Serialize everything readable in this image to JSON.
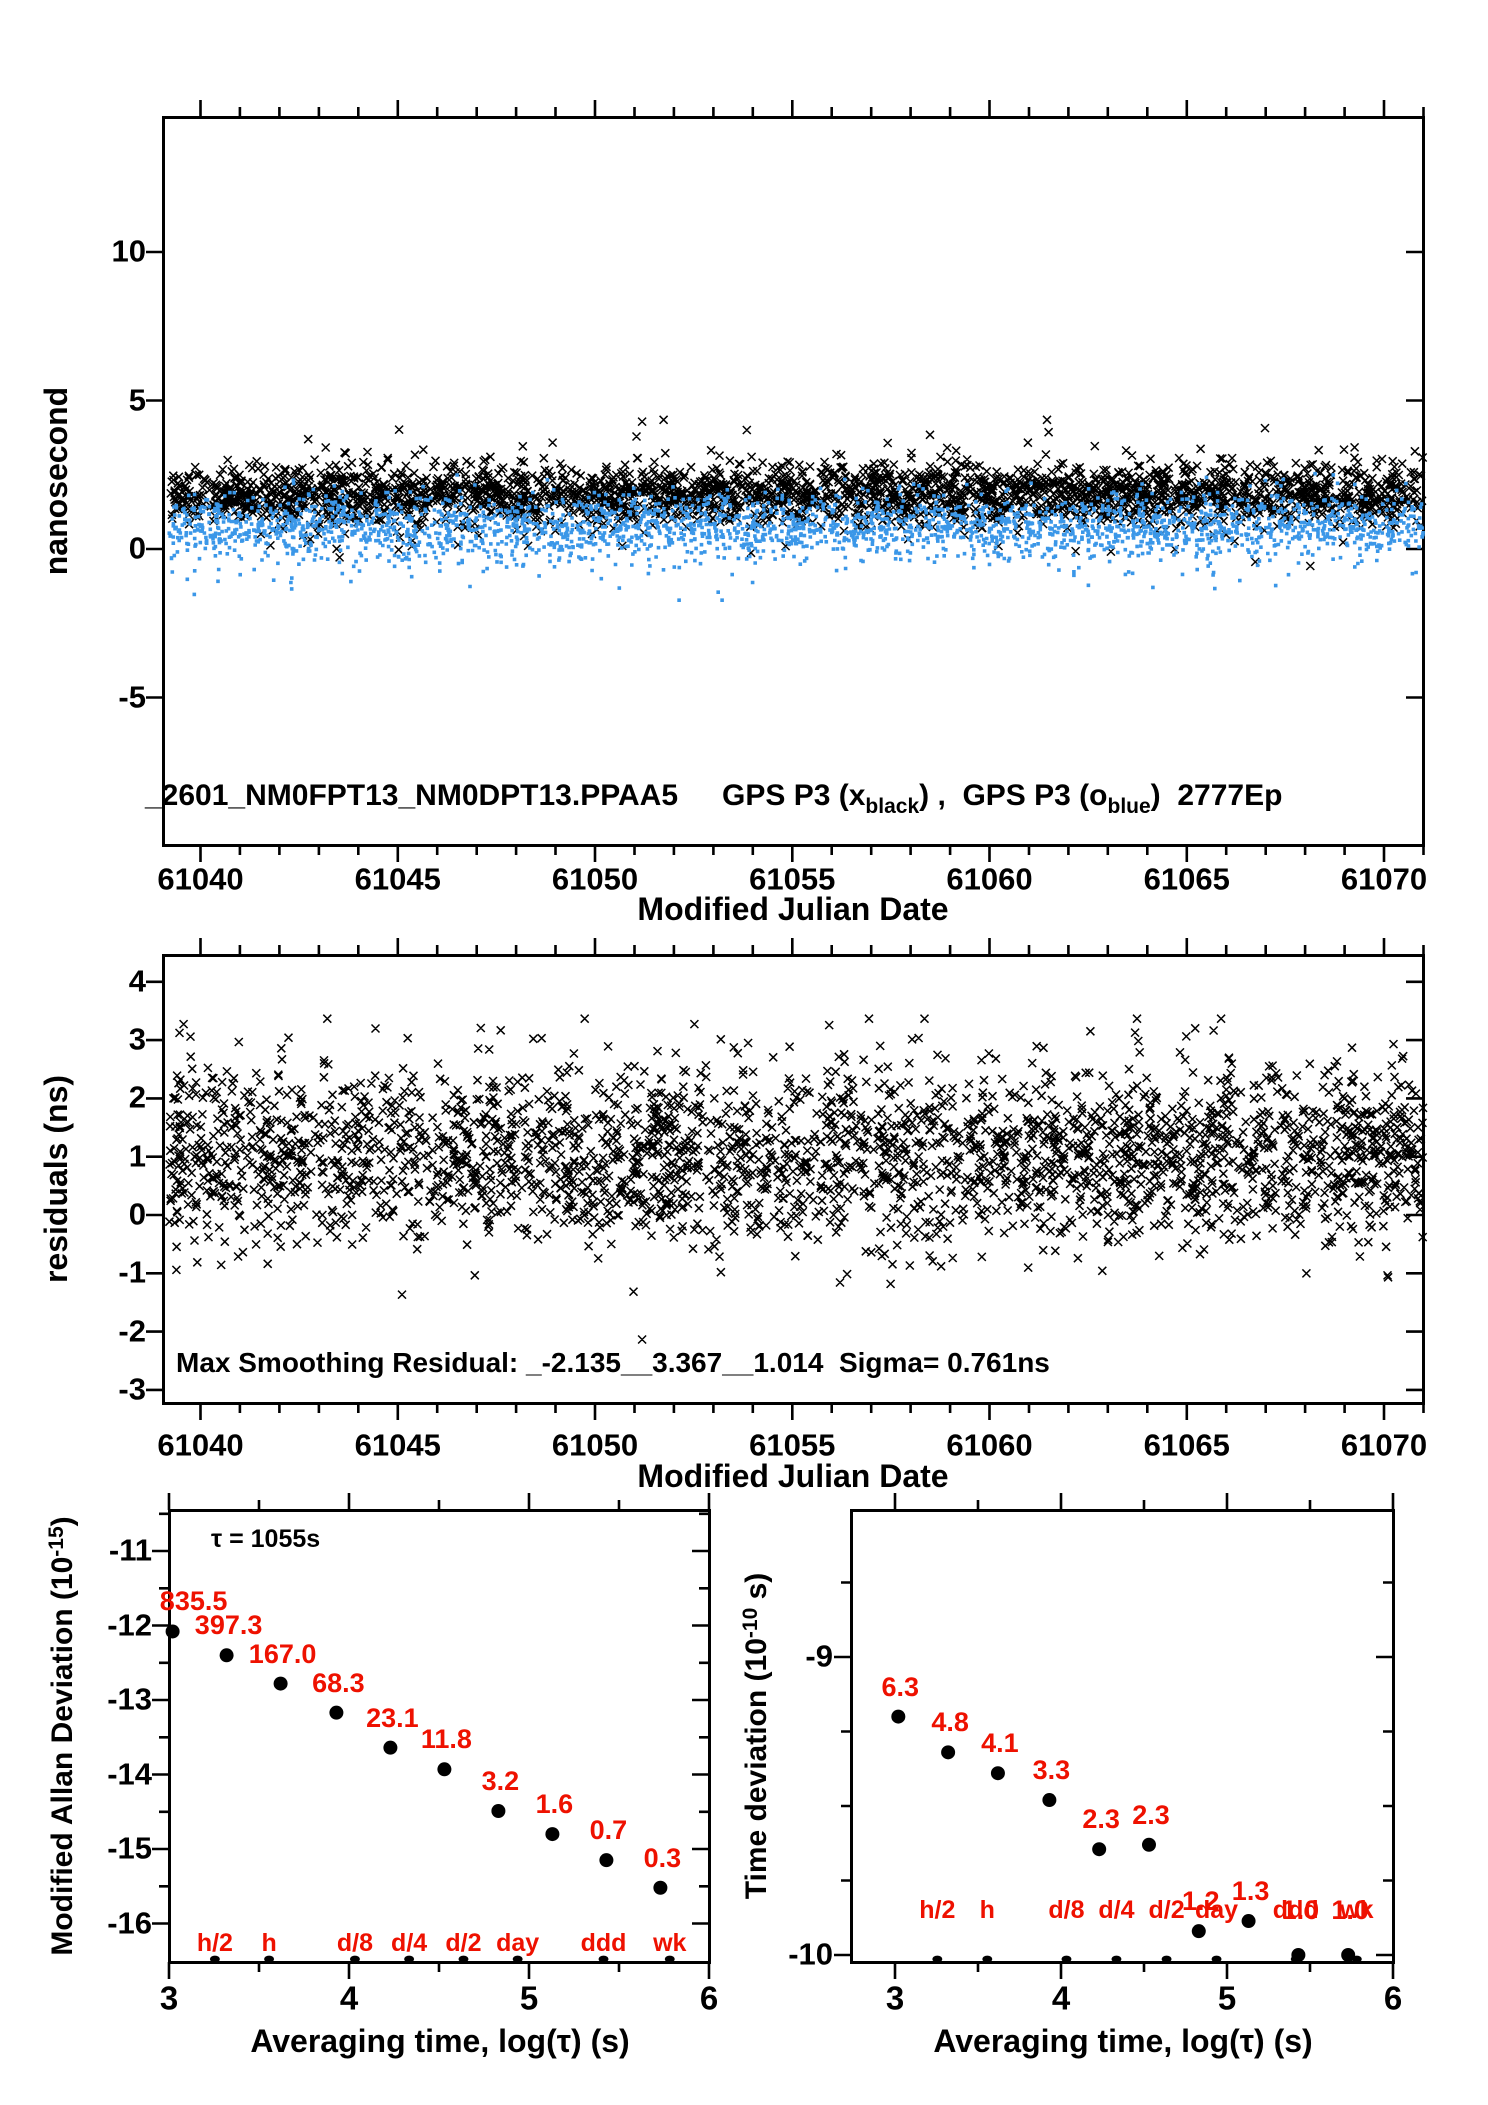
{
  "colors": {
    "black": "#000000",
    "blue": "#3B97E8",
    "red": "#EE1100",
    "background": "#FFFFFF"
  },
  "chart_data": [
    {
      "id": "phase-panel",
      "type": "scatter",
      "ylabel": "nanosecond",
      "xlabel": "Modified Julian Date",
      "title_parts": {
        "file": "_2601_NM0FPT13_NM0DPT13.PPAA5",
        "s1pre": "GPS P3 (x",
        "s1sub": "black",
        "mid": ") ,  GPS P3 (o",
        "s2sub": "blue",
        "tail": ")  2777Ep"
      },
      "xlim": [
        61039.05,
        61071.05
      ],
      "ylim": [
        -9.97,
        14.55
      ],
      "xticks_major": [
        61040,
        61045,
        61050,
        61055,
        61060,
        61065,
        61070
      ],
      "xtick_minor_step": 1,
      "yticks_major": [
        -5,
        0,
        5,
        10
      ],
      "grid": false,
      "series": [
        {
          "name": "GPS P3 (x black)",
          "marker": "x",
          "color": "#000000",
          "n": 2777,
          "y_mean": 1.82,
          "y_sd": 0.53,
          "y_range": [
            -1.7,
            4.35
          ],
          "outlier_frac": 0.015,
          "outlier_range": [
            0.8,
            2.1
          ],
          "outlier_sign": "both"
        },
        {
          "name": "GPS P3 (o blue)",
          "marker": "square",
          "color": "#3B97E8",
          "n": 2777,
          "y_mean": 0.74,
          "y_sd": 0.58,
          "y_range": [
            -2.6,
            2.75
          ],
          "outlier_frac": 0.04,
          "outlier_range": [
            0.3,
            1.6
          ],
          "outlier_sign": "neg"
        }
      ],
      "note": "dense scatter reconstructed pseudo-randomly to match band statistics"
    },
    {
      "id": "residuals-panel",
      "type": "scatter",
      "ylabel": "residuals (ns)",
      "xlabel": "Modified Julian Date",
      "annotation": "Max Smoothing Residual: _-2.135__3.367__1.014  Sigma= 0.761ns",
      "xlim": [
        61039.05,
        61071.05
      ],
      "ylim": [
        -3.22,
        4.46
      ],
      "xticks_major": [
        61040,
        61045,
        61050,
        61055,
        61060,
        61065,
        61070
      ],
      "xtick_minor_step": 1,
      "yticks_major": [
        -3,
        -2,
        -1,
        0,
        1,
        2,
        3,
        4
      ],
      "grid": false,
      "series": [
        {
          "name": "residuals",
          "marker": "x",
          "color": "#000000",
          "n": 2900,
          "y_mean": 1.01,
          "y_sd": 0.78,
          "y_range": [
            -2.135,
            3.367
          ],
          "outlier_frac": 0,
          "outlier_range": [
            0,
            0
          ],
          "outlier_sign": "both"
        }
      ],
      "stats": {
        "min": -2.135,
        "max": 3.367,
        "mean": 1.014,
        "sigma_ns": 0.761
      }
    },
    {
      "id": "mdev-panel",
      "type": "scatter",
      "ylabel_parts": {
        "base": "Modified Allan Deviation (10",
        "sup": "-15",
        "close": ")"
      },
      "xlabel": "Averaging time, log(τ) (s)",
      "annotation": "τ = 1055s",
      "xlim": [
        3,
        6
      ],
      "ylim": [
        -16.55,
        -10.43
      ],
      "xticks_major": [
        3,
        4,
        5,
        6
      ],
      "xticks_minor": [
        3.5,
        4.5,
        5.5
      ],
      "yticks_major": [
        -11,
        -12,
        -13,
        -14,
        -15,
        -16
      ],
      "ytick_minor_step": 0.5,
      "grid": false,
      "x": [
        3.02,
        3.32,
        3.62,
        3.93,
        4.23,
        4.53,
        4.83,
        5.13,
        5.43,
        5.73
      ],
      "y": [
        -12.08,
        -12.4,
        -12.78,
        -13.17,
        -13.64,
        -13.93,
        -14.49,
        -14.8,
        -15.15,
        -15.52
      ],
      "point_labels": [
        "835.5",
        "397.3",
        "167.0",
        "68.3",
        "23.1",
        "11.8",
        "3.2",
        "1.6",
        "0.7",
        "0.3"
      ],
      "tau_markers": [
        {
          "label": "h/2",
          "log_tau": 3.255
        },
        {
          "label": "h",
          "log_tau": 3.556
        },
        {
          "label": "d/8",
          "log_tau": 4.033
        },
        {
          "label": "d/4",
          "log_tau": 4.334
        },
        {
          "label": "d/2",
          "log_tau": 4.636
        },
        {
          "label": "day",
          "log_tau": 4.937
        },
        {
          "label": "ddd",
          "log_tau": 5.414
        },
        {
          "label": "wk",
          "log_tau": 5.782
        }
      ]
    },
    {
      "id": "tdev-panel",
      "type": "scatter",
      "ylabel_parts": {
        "base": "Time deviation (10",
        "sup": "-10",
        "close": " s)"
      },
      "xlabel": "Averaging time, log(τ) (s)",
      "xlim": [
        2.73,
        6.0
      ],
      "ylim": [
        -10.02,
        -8.51
      ],
      "xticks_major": [
        3,
        4,
        5,
        6
      ],
      "xticks_minor": [
        3.5,
        4.5,
        5.5
      ],
      "yticks_major": [
        -9,
        -10
      ],
      "ytick_minor_step": 0.25,
      "grid": false,
      "x": [
        3.02,
        3.32,
        3.62,
        3.93,
        4.23,
        4.53,
        4.83,
        5.13,
        5.43,
        5.73
      ],
      "y": [
        -9.2,
        -9.32,
        -9.39,
        -9.48,
        -9.645,
        -9.63,
        -9.92,
        -9.886,
        -10.0,
        -10.0
      ],
      "point_labels": [
        "6.3",
        "4.8",
        "4.1",
        "3.3",
        "2.3",
        "2.3",
        "1.2",
        "1.3",
        "1.0",
        "1.0"
      ],
      "tau_markers": [
        {
          "label": "h/2",
          "log_tau": 3.255
        },
        {
          "label": "h",
          "log_tau": 3.556
        },
        {
          "label": "d/8",
          "log_tau": 4.033
        },
        {
          "label": "d/4",
          "log_tau": 4.334
        },
        {
          "label": "d/2",
          "log_tau": 4.636
        },
        {
          "label": "day",
          "log_tau": 4.937
        },
        {
          "label": "ddd",
          "log_tau": 5.414
        },
        {
          "label": "wk",
          "log_tau": 5.782
        }
      ]
    }
  ]
}
